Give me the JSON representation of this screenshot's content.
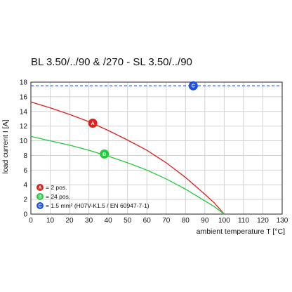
{
  "chart_data": {
    "type": "line",
    "title": "BL 3.50/../90 & /270 - SL 3.50/../90",
    "xlabel": "ambient temperature T [°C]",
    "ylabel": "load current I [A]",
    "xlim": [
      0,
      130
    ],
    "ylim": [
      0,
      18
    ],
    "x_ticks": [
      "0",
      "10",
      "20",
      "30",
      "40",
      "50",
      "60",
      "70",
      "80",
      "90",
      "100",
      "110",
      "120",
      "130"
    ],
    "y_ticks": [
      "0",
      "2",
      "4",
      "6",
      "8",
      "10",
      "12",
      "14",
      "16",
      "18"
    ],
    "grid": true,
    "legend_position": "bottom-left",
    "series": [
      {
        "marker": "A",
        "label": "= 2 pos.",
        "color": "#dd1f1f",
        "x": [
          0,
          10,
          20,
          30,
          40,
          50,
          60,
          70,
          80,
          90,
          95,
          100
        ],
        "y": [
          15.3,
          14.5,
          13.6,
          12.6,
          11.4,
          10.1,
          8.7,
          7.0,
          5.0,
          2.7,
          1.5,
          0
        ],
        "marker_at": [
          32,
          12.4
        ]
      },
      {
        "marker": "B",
        "label": "= 24 pos.",
        "color": "#22c93a",
        "x": [
          0,
          10,
          20,
          30,
          40,
          50,
          60,
          70,
          80,
          90,
          95,
          100
        ],
        "y": [
          10.6,
          10.0,
          9.4,
          8.7,
          7.9,
          7.0,
          6.0,
          4.8,
          3.4,
          1.8,
          1.0,
          0
        ],
        "marker_at": [
          38,
          8.2
        ]
      },
      {
        "marker": "C",
        "label": "= 1.5 mm² (H07V-K1.5 / EN 60947-7-1)",
        "color": "#1f4fe0",
        "x": [
          0,
          130
        ],
        "y": [
          17.5,
          17.5
        ],
        "marker_at": [
          84,
          17.5
        ],
        "dashed": true
      }
    ]
  }
}
